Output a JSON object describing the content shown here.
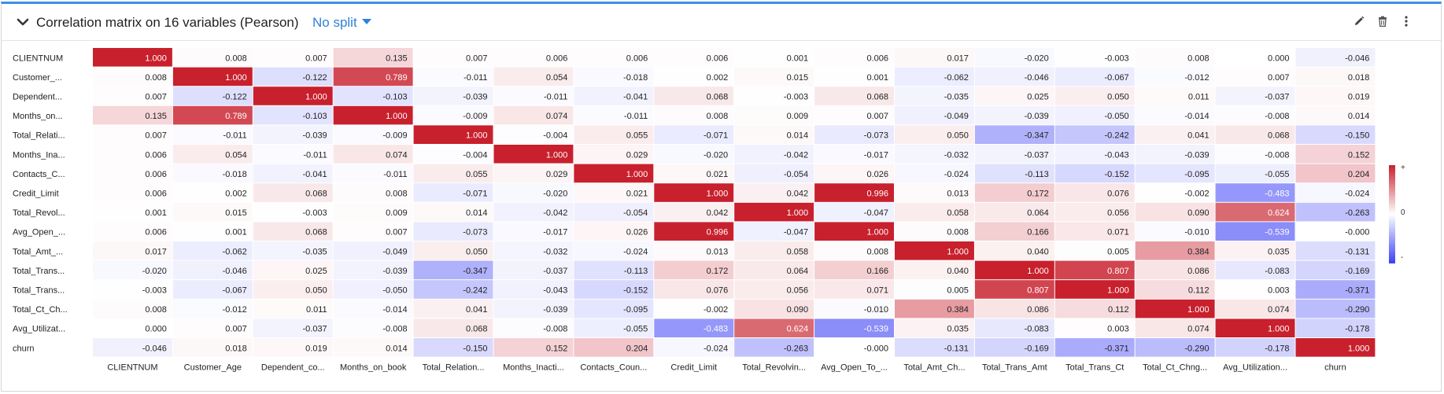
{
  "header": {
    "title": "Correlation matrix on 16 variables (Pearson)",
    "split_label": "No split",
    "icons": [
      "chevron-down-icon",
      "pencil-icon",
      "trash-icon",
      "more-vertical-icon"
    ]
  },
  "legend": {
    "max_label": "+",
    "mid_label": "0",
    "min_label": "-"
  },
  "colors": {
    "positive": "#c8202d",
    "negative": "#3a3ff5",
    "neutral": "#ffffff"
  },
  "chart_data": {
    "type": "heatmap",
    "row_labels": [
      "CLIENTNUM",
      "Customer_...",
      "Dependent...",
      "Months_on...",
      "Total_Relati...",
      "Months_Ina...",
      "Contacts_C...",
      "Credit_Limit",
      "Total_Revol...",
      "Avg_Open_...",
      "Total_Amt_...",
      "Total_Trans...",
      "Total_Trans...",
      "Total_Ct_Ch...",
      "Avg_Utilizat...",
      "churn"
    ],
    "col_labels": [
      "CLIENTNUM",
      "Customer_Age",
      "Dependent_co...",
      "Months_on_book",
      "Total_Relation...",
      "Months_Inacti...",
      "Contacts_Coun...",
      "Credit_Limit",
      "Total_Revolvin...",
      "Avg_Open_To_...",
      "Total_Amt_Ch...",
      "Total_Trans_Amt",
      "Total_Trans_Ct",
      "Total_Ct_Chng...",
      "Avg_Utilization...",
      "churn"
    ],
    "values": [
      [
        "1.000",
        "0.008",
        "0.007",
        "0.135",
        "0.007",
        "0.006",
        "0.006",
        "0.006",
        "0.001",
        "0.006",
        "0.017",
        "-0.020",
        "-0.003",
        "0.008",
        "0.000",
        "-0.046"
      ],
      [
        "0.008",
        "1.000",
        "-0.122",
        "0.789",
        "-0.011",
        "0.054",
        "-0.018",
        "0.002",
        "0.015",
        "0.001",
        "-0.062",
        "-0.046",
        "-0.067",
        "-0.012",
        "0.007",
        "0.018"
      ],
      [
        "0.007",
        "-0.122",
        "1.000",
        "-0.103",
        "-0.039",
        "-0.011",
        "-0.041",
        "0.068",
        "-0.003",
        "0.068",
        "-0.035",
        "0.025",
        "0.050",
        "0.011",
        "-0.037",
        "0.019"
      ],
      [
        "0.135",
        "0.789",
        "-0.103",
        "1.000",
        "-0.009",
        "0.074",
        "-0.011",
        "0.008",
        "0.009",
        "0.007",
        "-0.049",
        "-0.039",
        "-0.050",
        "-0.014",
        "-0.008",
        "0.014"
      ],
      [
        "0.007",
        "-0.011",
        "-0.039",
        "-0.009",
        "1.000",
        "-0.004",
        "0.055",
        "-0.071",
        "0.014",
        "-0.073",
        "0.050",
        "-0.347",
        "-0.242",
        "0.041",
        "0.068",
        "-0.150"
      ],
      [
        "0.006",
        "0.054",
        "-0.011",
        "0.074",
        "-0.004",
        "1.000",
        "0.029",
        "-0.020",
        "-0.042",
        "-0.017",
        "-0.032",
        "-0.037",
        "-0.043",
        "-0.039",
        "-0.008",
        "0.152"
      ],
      [
        "0.006",
        "-0.018",
        "-0.041",
        "-0.011",
        "0.055",
        "0.029",
        "1.000",
        "0.021",
        "-0.054",
        "0.026",
        "-0.024",
        "-0.113",
        "-0.152",
        "-0.095",
        "-0.055",
        "0.204"
      ],
      [
        "0.006",
        "0.002",
        "0.068",
        "0.008",
        "-0.071",
        "-0.020",
        "0.021",
        "1.000",
        "0.042",
        "0.996",
        "0.013",
        "0.172",
        "0.076",
        "-0.002",
        "-0.483",
        "-0.024"
      ],
      [
        "0.001",
        "0.015",
        "-0.003",
        "0.009",
        "0.014",
        "-0.042",
        "-0.054",
        "0.042",
        "1.000",
        "-0.047",
        "0.058",
        "0.064",
        "0.056",
        "0.090",
        "0.624",
        "-0.263"
      ],
      [
        "0.006",
        "0.001",
        "0.068",
        "0.007",
        "-0.073",
        "-0.017",
        "0.026",
        "0.996",
        "-0.047",
        "1.000",
        "0.008",
        "0.166",
        "0.071",
        "-0.010",
        "-0.539",
        "-0.000"
      ],
      [
        "0.017",
        "-0.062",
        "-0.035",
        "-0.049",
        "0.050",
        "-0.032",
        "-0.024",
        "0.013",
        "0.058",
        "0.008",
        "1.000",
        "0.040",
        "0.005",
        "0.384",
        "0.035",
        "-0.131"
      ],
      [
        "-0.020",
        "-0.046",
        "0.025",
        "-0.039",
        "-0.347",
        "-0.037",
        "-0.113",
        "0.172",
        "0.064",
        "0.166",
        "0.040",
        "1.000",
        "0.807",
        "0.086",
        "-0.083",
        "-0.169"
      ],
      [
        "-0.003",
        "-0.067",
        "0.050",
        "-0.050",
        "-0.242",
        "-0.043",
        "-0.152",
        "0.076",
        "0.056",
        "0.071",
        "0.005",
        "0.807",
        "1.000",
        "0.112",
        "0.003",
        "-0.371"
      ],
      [
        "0.008",
        "-0.012",
        "0.011",
        "-0.014",
        "0.041",
        "-0.039",
        "-0.095",
        "-0.002",
        "0.090",
        "-0.010",
        "0.384",
        "0.086",
        "0.112",
        "1.000",
        "0.074",
        "-0.290"
      ],
      [
        "0.000",
        "0.007",
        "-0.037",
        "-0.008",
        "0.068",
        "-0.008",
        "-0.055",
        "-0.483",
        "0.624",
        "-0.539",
        "0.035",
        "-0.083",
        "0.003",
        "0.074",
        "1.000",
        "-0.178"
      ],
      [
        "-0.046",
        "0.018",
        "0.019",
        "0.014",
        "-0.150",
        "0.152",
        "0.204",
        "-0.024",
        "-0.263",
        "-0.000",
        "-0.131",
        "-0.169",
        "-0.371",
        "-0.290",
        "-0.178",
        "1.000"
      ]
    ],
    "value_range": [
      -1,
      1
    ]
  }
}
